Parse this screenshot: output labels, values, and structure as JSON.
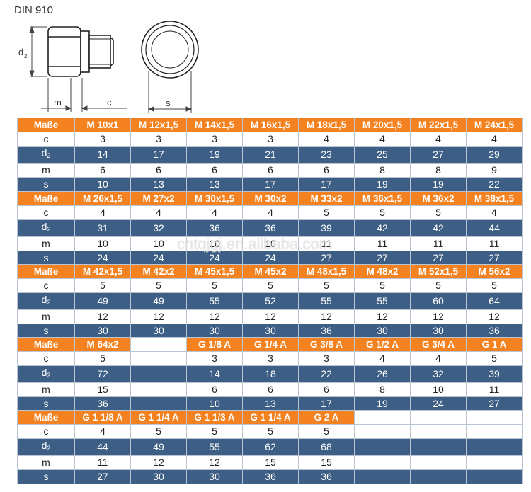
{
  "title": "DIN 910",
  "drawing": {
    "dim_d": "d",
    "dim_d_sub": "2",
    "dim_m": "m",
    "dim_c": "c",
    "dim_s": "s"
  },
  "watermark": "cntqjgj.en.alibaba.com",
  "blocks": [
    {
      "header": [
        "Maße",
        "M 10x1",
        "M 12x1,5",
        "M 14x1,5",
        "M 16x1,5",
        "M 18x1,5",
        "M 20x1,5",
        "M 22x1,5",
        "M 24x1,5"
      ],
      "rows": [
        {
          "label": "c",
          "values": [
            "3",
            "3",
            "3",
            "3",
            "4",
            "4",
            "4",
            "4"
          ]
        },
        {
          "label": "d2",
          "values": [
            "14",
            "17",
            "19",
            "21",
            "23",
            "25",
            "27",
            "29"
          ]
        },
        {
          "label": "m",
          "values": [
            "6",
            "6",
            "6",
            "6",
            "6",
            "8",
            "8",
            "9"
          ]
        },
        {
          "label": "s",
          "values": [
            "10",
            "13",
            "13",
            "17",
            "17",
            "19",
            "19",
            "22"
          ]
        }
      ]
    },
    {
      "header": [
        "Maße",
        "M 26x1,5",
        "M 27x2",
        "M 30x1,5",
        "M 30x2",
        "M 33x2",
        "M 36x1,5",
        "M 36x2",
        "M 38x1,5"
      ],
      "rows": [
        {
          "label": "c",
          "values": [
            "4",
            "4",
            "4",
            "4",
            "5",
            "5",
            "5",
            "4"
          ]
        },
        {
          "label": "d2",
          "values": [
            "31",
            "32",
            "36",
            "36",
            "39",
            "42",
            "42",
            "44"
          ]
        },
        {
          "label": "m",
          "values": [
            "10",
            "10",
            "10",
            "10",
            "11",
            "11",
            "11",
            "11"
          ]
        },
        {
          "label": "s",
          "values": [
            "24",
            "24",
            "24",
            "24",
            "27",
            "27",
            "27",
            "27"
          ]
        }
      ]
    },
    {
      "header": [
        "Maße",
        "M 42x1,5",
        "M 42x2",
        "M 45x1,5",
        "M 45x2",
        "M 48x1,5",
        "M 48x2",
        "M 52x1,5",
        "M 56x2"
      ],
      "rows": [
        {
          "label": "c",
          "values": [
            "5",
            "5",
            "5",
            "5",
            "5",
            "5",
            "5",
            "5"
          ]
        },
        {
          "label": "d2",
          "values": [
            "49",
            "49",
            "55",
            "52",
            "55",
            "55",
            "60",
            "64"
          ]
        },
        {
          "label": "m",
          "values": [
            "12",
            "12",
            "12",
            "12",
            "12",
            "12",
            "12",
            "12"
          ]
        },
        {
          "label": "s",
          "values": [
            "30",
            "30",
            "30",
            "30",
            "36",
            "30",
            "30",
            "36"
          ]
        }
      ]
    },
    {
      "header": [
        "Maße",
        "M 64x2",
        "",
        "G 1/8 A",
        "G 1/4 A",
        "G 3/8 A",
        "G 1/2 A",
        "G 3/4 A",
        "G 1 A"
      ],
      "rows": [
        {
          "label": "c",
          "values": [
            "5",
            "",
            "3",
            "3",
            "3",
            "4",
            "4",
            "5"
          ]
        },
        {
          "label": "d2",
          "values": [
            "72",
            "",
            "14",
            "18",
            "22",
            "26",
            "32",
            "39"
          ]
        },
        {
          "label": "m",
          "values": [
            "15",
            "",
            "6",
            "6",
            "6",
            "8",
            "10",
            "11"
          ]
        },
        {
          "label": "s",
          "values": [
            "36",
            "",
            "10",
            "13",
            "17",
            "19",
            "24",
            "27"
          ]
        }
      ]
    },
    {
      "header": [
        "Maße",
        "G 1 1/8 A",
        "G 1 1/4 A",
        "G 1 1/3 A",
        "G 1 1/4 A",
        "G 2 A",
        "",
        "",
        ""
      ],
      "rows": [
        {
          "label": "c",
          "values": [
            "4",
            "5",
            "5",
            "5",
            "5",
            "",
            "",
            ""
          ]
        },
        {
          "label": "d2",
          "values": [
            "44",
            "49",
            "55",
            "62",
            "68",
            "",
            "",
            ""
          ]
        },
        {
          "label": "m",
          "values": [
            "11",
            "12",
            "12",
            "15",
            "15",
            "",
            "",
            ""
          ]
        },
        {
          "label": "s",
          "values": [
            "27",
            "30",
            "30",
            "36",
            "36",
            "",
            "",
            ""
          ]
        }
      ]
    }
  ]
}
